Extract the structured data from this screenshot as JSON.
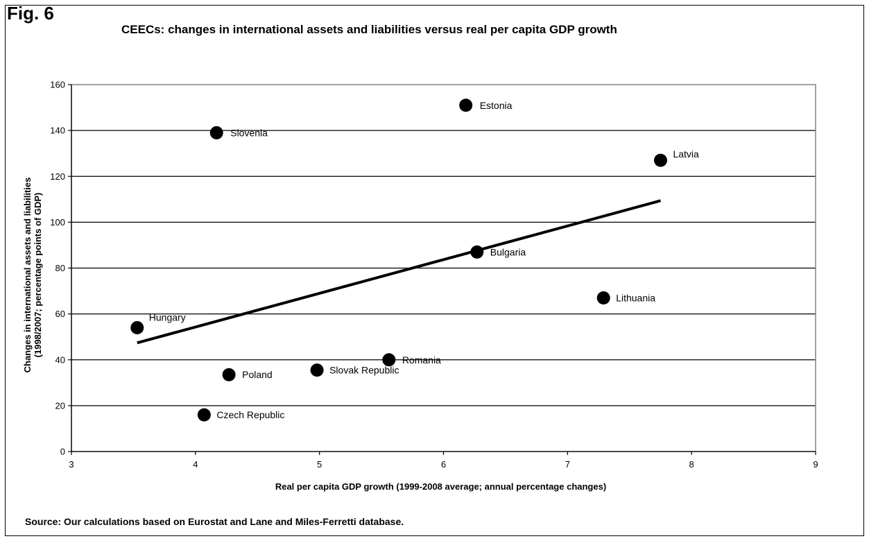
{
  "figure": {
    "label": "Fig. 6",
    "source_note": "Source: Our calculations based on Eurostat and Lane and Miles-Ferretti database."
  },
  "chart_data": {
    "type": "scatter",
    "title": "CEECs: changes in international assets and liabilities versus real per capita GDP growth",
    "xlabel": "Real per capita GDP growth (1999-2008 average; annual percentage changes)",
    "ylabel": [
      "Changes in international assets and liabilities",
      "(1998/2007; percentage points of GDP)"
    ],
    "xlim": [
      3,
      9
    ],
    "ylim": [
      0,
      160
    ],
    "xticks": [
      3,
      4,
      5,
      6,
      7,
      8,
      9
    ],
    "yticks": [
      0,
      20,
      40,
      60,
      80,
      100,
      120,
      140,
      160
    ],
    "grid": "horizontal",
    "points": [
      {
        "label": "Hungary",
        "x": 3.53,
        "y": 54
      },
      {
        "label": "Czech Republic",
        "x": 4.07,
        "y": 16
      },
      {
        "label": "Slovenia",
        "x": 4.17,
        "y": 139
      },
      {
        "label": "Poland",
        "x": 4.27,
        "y": 33.5
      },
      {
        "label": "Slovak Republic",
        "x": 4.98,
        "y": 35.5
      },
      {
        "label": "Romania",
        "x": 5.56,
        "y": 40
      },
      {
        "label": "Estonia",
        "x": 6.18,
        "y": 151
      },
      {
        "label": "Bulgaria",
        "x": 6.27,
        "y": 87
      },
      {
        "label": "Lithuania",
        "x": 7.29,
        "y": 67
      },
      {
        "label": "Latvia",
        "x": 7.75,
        "y": 127
      }
    ],
    "trendline": {
      "x": [
        3.53,
        7.75
      ],
      "y": [
        47.4,
        109.4
      ]
    },
    "colors": {
      "marker": "#000000",
      "plot_border": "#808080",
      "grid": "#000000",
      "trendline": "#000000"
    }
  }
}
